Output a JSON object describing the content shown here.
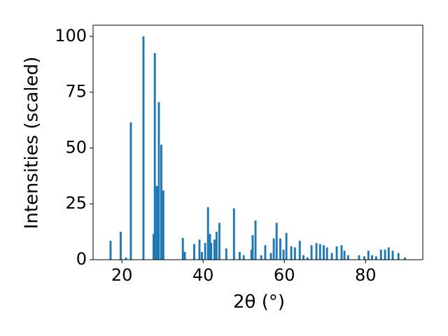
{
  "chart_data": {
    "type": "bar",
    "color": "#1f77b4",
    "xlabel": "2θ (°)",
    "ylabel": "Intensities (scaled)",
    "x": [
      17.2,
      19.7,
      21,
      22.2,
      25.3,
      27.8,
      28.1,
      28.6,
      29.1,
      29.7,
      30.2,
      35,
      35.5,
      37.8,
      39.1,
      39.7,
      40.5,
      41.2,
      41.7,
      42,
      42.8,
      43.3,
      44,
      45.7,
      47.6,
      49,
      50,
      51.9,
      52.2,
      52.9,
      54.3,
      55.3,
      56.7,
      57.4,
      58.1,
      59,
      59.8,
      60.5,
      61.7,
      62.6,
      63.8,
      64.7,
      65.7,
      66.7,
      67.9,
      68.8,
      69.7,
      70.5,
      71.7,
      72.9,
      74.1,
      74.8,
      75.7,
      78.4,
      79.7,
      80.7,
      81.6,
      82.6,
      83.8,
      84.8,
      85.7,
      86.7,
      88.1,
      89.7
    ],
    "values": [
      8.5,
      12.5,
      1,
      61.5,
      100,
      11.5,
      92.5,
      33,
      70.5,
      51.5,
      31,
      9.7,
      3.5,
      7,
      9,
      3.5,
      7.5,
      23.5,
      11.5,
      7.5,
      9,
      12.5,
      16.5,
      5,
      23,
      3.5,
      2,
      4.5,
      11,
      17.5,
      2,
      6.5,
      3,
      9.5,
      16.5,
      9.5,
      4.5,
      12,
      6,
      5.5,
      8.5,
      2,
      1,
      6.5,
      7.5,
      7,
      6.5,
      5.5,
      3,
      6,
      6.5,
      4,
      2,
      2,
      1.5,
      4,
      2,
      1.5,
      4.5,
      4.5,
      5.5,
      4,
      3,
      1
    ],
    "xlim": [
      12.9,
      94.1
    ],
    "ylim": [
      0,
      105
    ],
    "xticks": [
      20,
      40,
      60,
      80
    ],
    "yticks": [
      0,
      25,
      50,
      75,
      100
    ]
  }
}
